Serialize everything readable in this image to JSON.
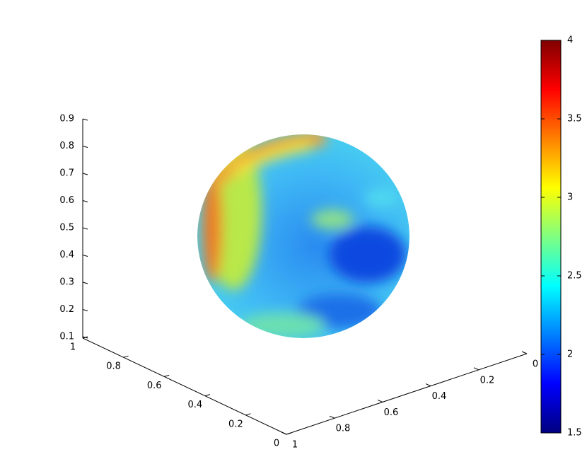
{
  "chart_data": {
    "type": "surface3d",
    "colormap": "jet",
    "xlim": [
      0,
      1
    ],
    "xticks": [
      0,
      0.2,
      0.4,
      0.6,
      0.8,
      1
    ],
    "ylim": [
      0,
      1
    ],
    "yticks": [
      0,
      0.2,
      0.4,
      0.6,
      0.8,
      1
    ],
    "zlim": [
      0.1,
      0.9
    ],
    "zticks": [
      0.1,
      0.2,
      0.3,
      0.4,
      0.5,
      0.6,
      0.7,
      0.8,
      0.9
    ],
    "clim": [
      1.5,
      4
    ],
    "cticks": [
      1.5,
      2,
      2.5,
      3,
      3.5,
      4
    ]
  }
}
